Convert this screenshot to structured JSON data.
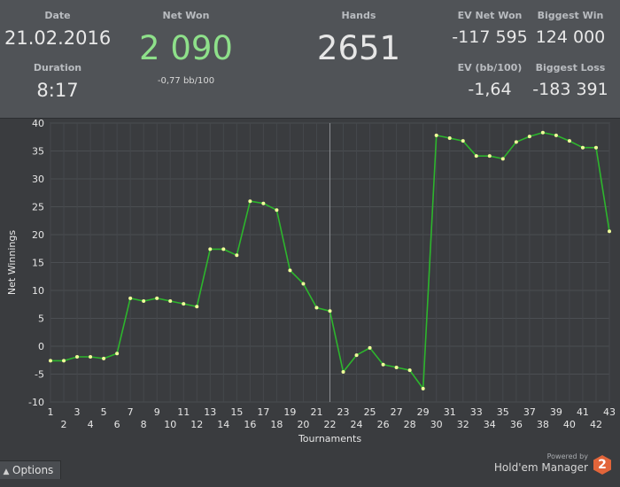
{
  "stats": {
    "date_label": "Date",
    "date_value": "21.02.2016",
    "duration_label": "Duration",
    "duration_value": "8:17",
    "netwon_label": "Net Won",
    "netwon_value": "2 090",
    "netwon_sub": "-0,77 bb/100",
    "hands_label": "Hands",
    "hands_value": "2651",
    "ev_netwon_label": "EV Net Won",
    "ev_netwon_value": "-117 595",
    "ev_bb_label": "EV (bb/100)",
    "ev_bb_value": "-1,64",
    "biggest_win_label": "Biggest Win",
    "biggest_win_value": "124 000",
    "biggest_loss_label": "Biggest Loss",
    "biggest_loss_value": "-183 391"
  },
  "colors": {
    "net_won_value": "#8ee08a",
    "line": "#2db52d",
    "marker": "#f0ff9a"
  },
  "chart_data": {
    "type": "line",
    "xlabel": "Tournaments",
    "ylabel": "Net Winnings",
    "xlim": [
      1,
      43
    ],
    "ylim": [
      -10,
      40
    ],
    "y_ticks": [
      -10,
      -5,
      0,
      5,
      10,
      15,
      20,
      25,
      30,
      35,
      40
    ],
    "x_ticks_top_row": [
      "1",
      "3",
      "5",
      "7",
      "9",
      "11",
      "13",
      "15",
      "17",
      "19",
      "21",
      "23",
      "25",
      "27",
      "29",
      "31",
      "33",
      "35",
      "37",
      "39",
      "41",
      "43"
    ],
    "x_ticks_bottom_row": [
      "2",
      "4",
      "6",
      "8",
      "10",
      "12",
      "14",
      "16",
      "18",
      "20",
      "22",
      "24",
      "26",
      "28",
      "30",
      "32",
      "34",
      "36",
      "38",
      "40",
      "42"
    ],
    "grid": true,
    "vertical_marker_x": 22,
    "x": [
      1,
      2,
      3,
      4,
      5,
      6,
      7,
      8,
      9,
      10,
      11,
      12,
      13,
      14,
      15,
      16,
      17,
      18,
      19,
      20,
      21,
      22,
      23,
      24,
      25,
      26,
      27,
      28,
      29,
      30,
      31,
      32,
      33,
      34,
      35,
      36,
      37,
      38,
      39,
      40,
      41,
      42,
      43
    ],
    "values": [
      -2.6,
      -2.6,
      -1.9,
      -1.9,
      -2.2,
      -1.3,
      8.6,
      8.1,
      8.6,
      8.1,
      7.6,
      7.1,
      17.4,
      17.4,
      16.3,
      26.0,
      25.6,
      24.4,
      13.6,
      11.2,
      6.9,
      6.3,
      -4.6,
      -1.6,
      -0.3,
      -3.3,
      -3.8,
      -4.3,
      -7.6,
      37.8,
      37.3,
      36.8,
      34.1,
      34.1,
      33.6,
      36.6,
      37.6,
      38.3,
      37.8,
      36.8,
      35.6,
      35.6,
      20.6
    ]
  },
  "footer": {
    "options_label": "Options",
    "powered_by": "Powered by",
    "brand_name": "Hold'em Manager",
    "brand_badge": "2"
  }
}
